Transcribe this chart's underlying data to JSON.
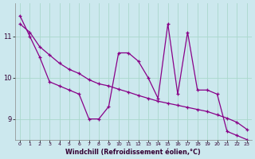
{
  "xlabel": "Windchill (Refroidissement éolien,°C)",
  "bg_color": "#cce8ee",
  "line_color": "#880088",
  "x_data": [
    0,
    1,
    2,
    3,
    4,
    5,
    6,
    7,
    8,
    9,
    10,
    11,
    12,
    13,
    14,
    15,
    16,
    17,
    18,
    19,
    20,
    21,
    22,
    23
  ],
  "y_data": [
    11.5,
    11.0,
    10.5,
    9.9,
    9.8,
    9.7,
    9.6,
    9.0,
    9.0,
    9.3,
    10.6,
    10.6,
    10.4,
    10.0,
    9.5,
    11.3,
    9.6,
    11.1,
    9.7,
    9.7,
    9.6,
    8.7,
    8.6,
    8.5
  ],
  "y_trend": [
    11.3,
    11.1,
    10.75,
    10.55,
    10.35,
    10.2,
    10.1,
    9.95,
    9.85,
    9.8,
    9.72,
    9.65,
    9.57,
    9.5,
    9.43,
    9.38,
    9.33,
    9.28,
    9.23,
    9.18,
    9.1,
    9.02,
    8.92,
    8.75
  ],
  "ylim": [
    8.5,
    11.8
  ],
  "xlim": [
    -0.5,
    23.5
  ],
  "yticks": [
    9,
    10,
    11
  ],
  "xticks": [
    0,
    1,
    2,
    3,
    4,
    5,
    6,
    7,
    8,
    9,
    10,
    11,
    12,
    13,
    14,
    15,
    16,
    17,
    18,
    19,
    20,
    21,
    22,
    23
  ],
  "grid_color": "#aad8cc"
}
